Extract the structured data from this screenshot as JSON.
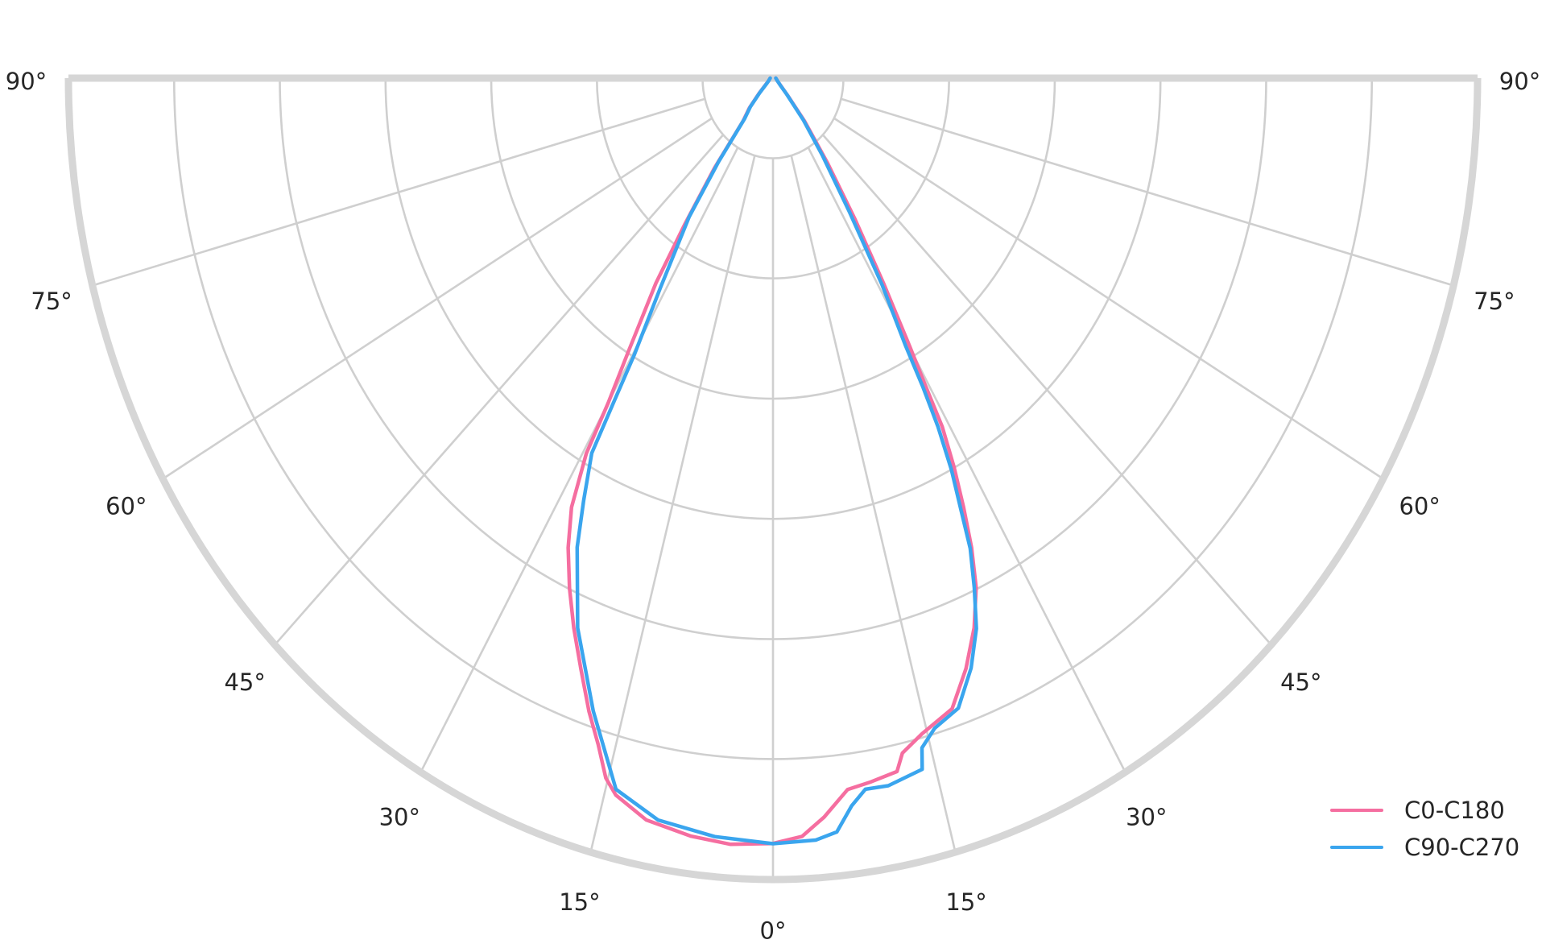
{
  "chart_data": {
    "type": "polar_photometric",
    "description": "Luminous intensity distribution curve, lower half polar plot, 0 degrees at nadir, mirrored angle labels up to 90 degrees on both sides",
    "axis": {
      "angle_ticks": [
        {
          "deg": 0,
          "label": "0°"
        },
        {
          "deg": 15,
          "label": "15°"
        },
        {
          "deg": 30,
          "label": "30°"
        },
        {
          "deg": 45,
          "label": "45°"
        },
        {
          "deg": 60,
          "label": "60°"
        },
        {
          "deg": 75,
          "label": "75°"
        },
        {
          "deg": 90,
          "label": "90°"
        }
      ],
      "mirrored": true,
      "spoke_step_deg": 15,
      "ring_fractions": [
        0.1,
        0.25,
        0.4,
        0.55,
        0.7,
        0.85,
        1.0
      ],
      "radial_value_labels": "none"
    },
    "series": [
      {
        "name": "C0-C180",
        "color": "#F56EA0",
        "points_deg_fraction": [
          [
            -90,
            0.004
          ],
          [
            -62,
            0.007
          ],
          [
            -52,
            0.013
          ],
          [
            -46,
            0.028
          ],
          [
            -42,
            0.05
          ],
          [
            -38.4,
            0.068
          ],
          [
            -36.5,
            0.14
          ],
          [
            -34.5,
            0.22
          ],
          [
            -33,
            0.305
          ],
          [
            -31,
            0.4
          ],
          [
            -30,
            0.468
          ],
          [
            -29.5,
            0.538
          ],
          [
            -28.1,
            0.607
          ],
          [
            -26.4,
            0.654
          ],
          [
            -24.4,
            0.699
          ],
          [
            -22.4,
            0.742
          ],
          [
            -20.3,
            0.786
          ],
          [
            -18.3,
            0.832
          ],
          [
            -16.6,
            0.868
          ],
          [
            -15.2,
            0.905
          ],
          [
            -14,
            0.922
          ],
          [
            -11,
            0.943
          ],
          [
            -7,
            0.953
          ],
          [
            -3.6,
            0.958
          ],
          [
            0,
            0.955
          ],
          [
            2.5,
            0.947
          ],
          [
            4.5,
            0.925
          ],
          [
            6.8,
            0.894
          ],
          [
            9,
            0.889
          ],
          [
            11.5,
            0.883
          ],
          [
            12.3,
            0.862
          ],
          [
            14.5,
            0.845
          ],
          [
            17.9,
            0.827
          ],
          [
            20.4,
            0.786
          ],
          [
            22.6,
            0.743
          ],
          [
            24.4,
            0.698
          ],
          [
            25.7,
            0.65
          ],
          [
            26.8,
            0.6
          ],
          [
            27.9,
            0.549
          ],
          [
            28.9,
            0.497
          ],
          [
            29.4,
            0.442
          ],
          [
            30.1,
            0.387
          ],
          [
            31.5,
            0.3
          ],
          [
            33.5,
            0.21
          ],
          [
            36.2,
            0.13
          ],
          [
            39.9,
            0.0695
          ],
          [
            44,
            0.03
          ],
          [
            50,
            0.014
          ],
          [
            62,
            0.007
          ],
          [
            90,
            0.004
          ]
        ]
      },
      {
        "name": "C90-C270",
        "color": "#3AA5EE",
        "points_deg_fraction": [
          [
            -90,
            0.004
          ],
          [
            -62,
            0.007
          ],
          [
            -52,
            0.012
          ],
          [
            -46,
            0.026
          ],
          [
            -42,
            0.048
          ],
          [
            -38.5,
            0.065
          ],
          [
            -36.5,
            0.13
          ],
          [
            -34.5,
            0.21
          ],
          [
            -31.4,
            0.307
          ],
          [
            -29.7,
            0.397
          ],
          [
            -29.2,
            0.465
          ],
          [
            -28.8,
            0.534
          ],
          [
            -27,
            0.592
          ],
          [
            -25.4,
            0.648
          ],
          [
            -22,
            0.74
          ],
          [
            -17.9,
            0.83
          ],
          [
            -14.1,
            0.915
          ],
          [
            -10,
            0.94
          ],
          [
            -5,
            0.95
          ],
          [
            0,
            0.9553
          ],
          [
            3.65,
            0.9527
          ],
          [
            5.5,
            0.945
          ],
          [
            7,
            0.915
          ],
          [
            8.4,
            0.897
          ],
          [
            10.5,
            0.898
          ],
          [
            13.8,
            0.888
          ],
          [
            14.2,
            0.862
          ],
          [
            15.8,
            0.843
          ],
          [
            18.5,
            0.829
          ],
          [
            20.9,
            0.788
          ],
          [
            22.8,
            0.745
          ],
          [
            24.2,
            0.697
          ],
          [
            25.5,
            0.65
          ],
          [
            26.4,
            0.598
          ],
          [
            27.4,
            0.55
          ],
          [
            28.3,
            0.494
          ],
          [
            28.9,
            0.44
          ],
          [
            29.4,
            0.384
          ],
          [
            31,
            0.3
          ],
          [
            33,
            0.2
          ],
          [
            36,
            0.12
          ],
          [
            39.5,
            0.068
          ],
          [
            44,
            0.028
          ],
          [
            50,
            0.013
          ],
          [
            62,
            0.007
          ],
          [
            90,
            0.004
          ]
        ]
      }
    ],
    "legend": {
      "position": "lower right",
      "entries": [
        "C0-C180",
        "C90-C270"
      ]
    },
    "style": {
      "grid_color": "#cfcfcf",
      "frame_color": "#d6d6d6",
      "label_color": "#262626",
      "background": "#ffffff",
      "grid_line_width": 2.6,
      "frame_line_width": 9,
      "curve_line_width": 4.5,
      "label_font_px": 29
    },
    "title": ""
  }
}
